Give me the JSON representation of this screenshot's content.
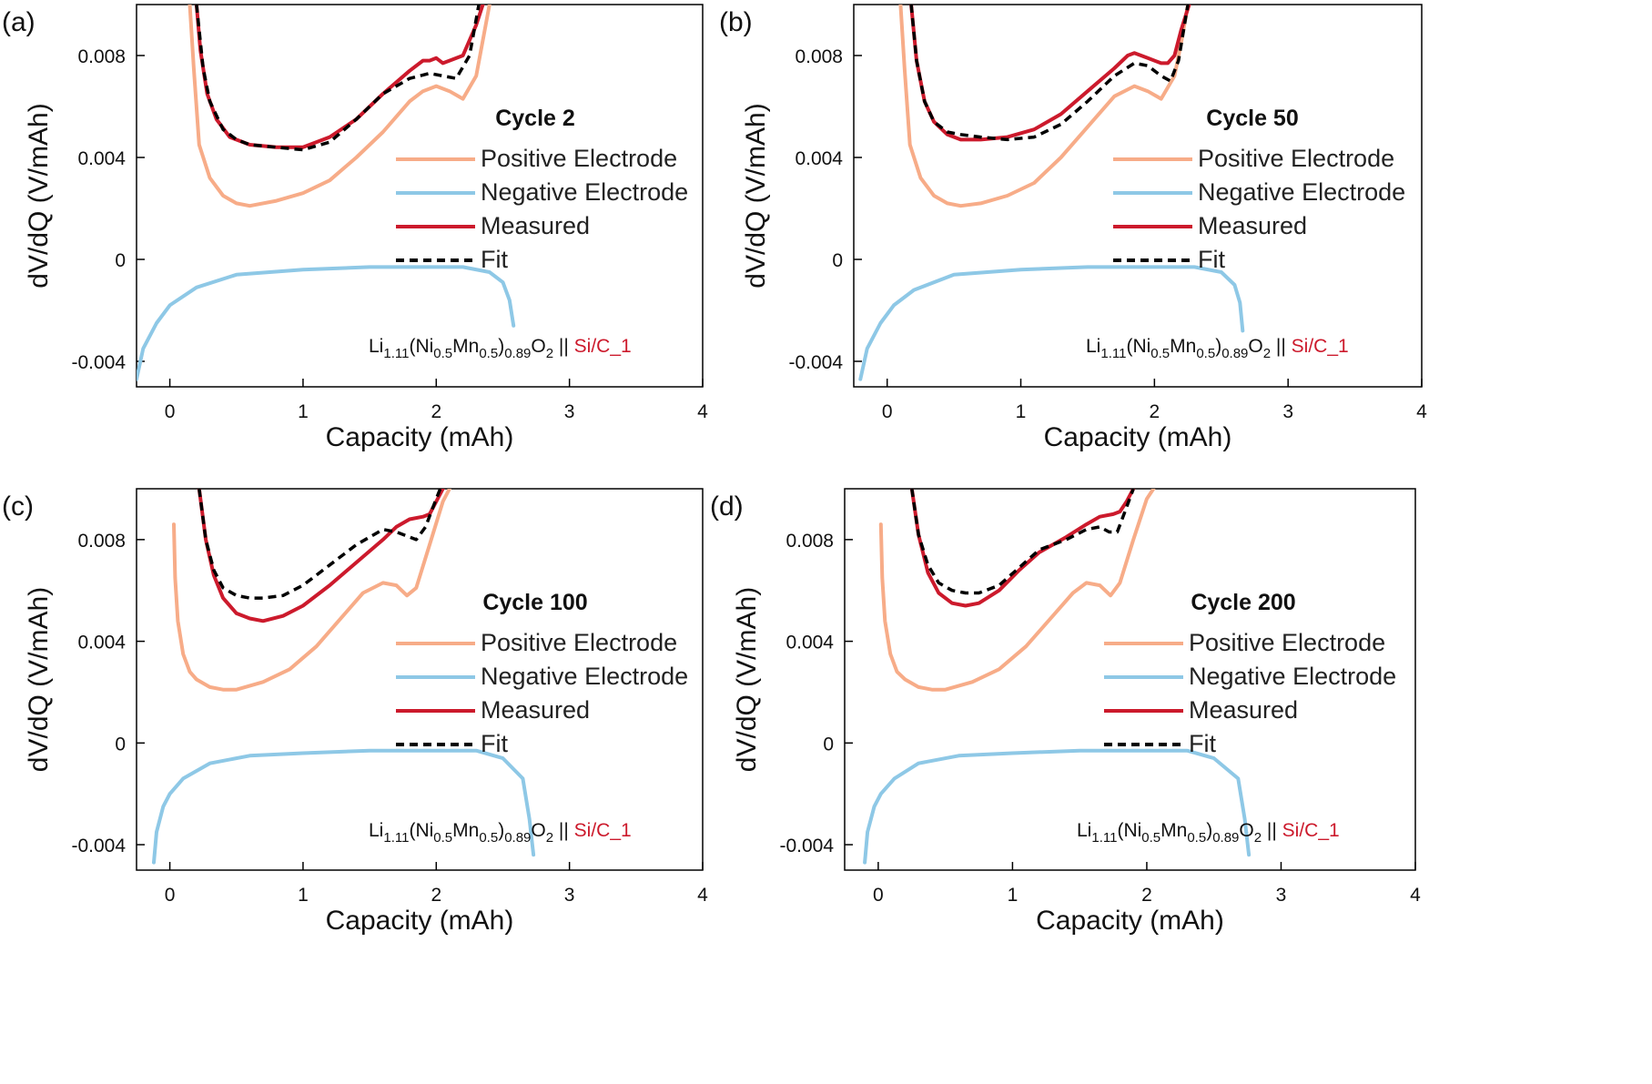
{
  "figure": {
    "panels": [
      {
        "letter": "(a)",
        "cycle_title": "Cycle 2"
      },
      {
        "letter": "(b)",
        "cycle_title": "Cycle 50"
      },
      {
        "letter": "(c)",
        "cycle_title": "Cycle 100"
      },
      {
        "letter": "(d)",
        "cycle_title": "Cycle 200"
      }
    ],
    "colors": {
      "positive": "#f7ac88",
      "negative": "#8ec8e6",
      "measured": "#cc1a2c",
      "fit": "#000000",
      "axis": "#000000",
      "annotation_red": "#cc1a2c"
    },
    "xlabel": "Capacity (mAh)",
    "ylabel": "dV/dQ (V/mAh)",
    "xticks": [
      "0",
      "1",
      "2",
      "3",
      "4"
    ],
    "yticks": [
      "-0.004",
      "0",
      "0.004",
      "0.008"
    ],
    "legend": [
      "Positive Electrode",
      "Negative Electrode",
      "Measured",
      "Fit"
    ],
    "annotation": {
      "li": "Li",
      "li_sub": "1.11",
      "open": "(Ni",
      "ni_sub": "0.5",
      "mn": "Mn",
      "mn_sub": "0.5",
      "close": ")",
      "close_sub": "0.89",
      "oxy": "O",
      "oxy_sub": "2",
      "sep": " || ",
      "anode": "Si/C_1"
    }
  },
  "chart_data": [
    {
      "type": "line",
      "title": "Cycle 2",
      "xlabel": "Capacity (mAh)",
      "ylabel": "dV/dQ (V/mAh)",
      "xlim": [
        -0.25,
        4
      ],
      "ylim": [
        -0.005,
        0.01
      ],
      "legend_position": "right",
      "series": [
        {
          "name": "Positive Electrode",
          "x": [
            0.15,
            0.18,
            0.22,
            0.3,
            0.4,
            0.5,
            0.6,
            0.8,
            1.0,
            1.2,
            1.4,
            1.6,
            1.8,
            1.9,
            2.0,
            2.1,
            2.2,
            2.3,
            2.4
          ],
          "y": [
            0.01,
            0.0075,
            0.0045,
            0.0032,
            0.0025,
            0.0022,
            0.0021,
            0.0023,
            0.0026,
            0.0031,
            0.004,
            0.005,
            0.0062,
            0.0066,
            0.0068,
            0.0066,
            0.0063,
            0.0072,
            0.01
          ]
        },
        {
          "name": "Negative Electrode",
          "x": [
            -0.25,
            -0.2,
            -0.1,
            0.0,
            0.2,
            0.5,
            1.0,
            1.5,
            2.0,
            2.2,
            2.4,
            2.5,
            2.55,
            2.58
          ],
          "y": [
            -0.0047,
            -0.0035,
            -0.0025,
            -0.0018,
            -0.0011,
            -0.0006,
            -0.0004,
            -0.0003,
            -0.0003,
            -0.0003,
            -0.0005,
            -0.0009,
            -0.0016,
            -0.0026
          ]
        },
        {
          "name": "Measured",
          "x": [
            0.2,
            0.23,
            0.28,
            0.35,
            0.45,
            0.6,
            0.8,
            1.0,
            1.2,
            1.4,
            1.6,
            1.8,
            1.9,
            1.95,
            2.0,
            2.05,
            2.1,
            2.2,
            2.3,
            2.35
          ],
          "y": [
            0.01,
            0.0082,
            0.0065,
            0.0055,
            0.0048,
            0.0045,
            0.0044,
            0.0044,
            0.0048,
            0.0055,
            0.0065,
            0.0074,
            0.0078,
            0.0078,
            0.0079,
            0.0077,
            0.0078,
            0.008,
            0.0092,
            0.01
          ]
        },
        {
          "name": "Fit",
          "x": [
            0.2,
            0.25,
            0.3,
            0.4,
            0.5,
            0.6,
            0.8,
            1.0,
            1.2,
            1.4,
            1.6,
            1.8,
            1.95,
            2.05,
            2.15,
            2.25,
            2.32
          ],
          "y": [
            0.01,
            0.0075,
            0.0062,
            0.0051,
            0.0047,
            0.0045,
            0.0044,
            0.0043,
            0.0046,
            0.0055,
            0.0065,
            0.0071,
            0.0073,
            0.0072,
            0.0071,
            0.008,
            0.01
          ]
        }
      ]
    },
    {
      "type": "line",
      "title": "Cycle 50",
      "xlabel": "Capacity (mAh)",
      "ylabel": "dV/dQ (V/mAh)",
      "xlim": [
        -0.25,
        4
      ],
      "ylim": [
        -0.005,
        0.01
      ],
      "legend_position": "right",
      "series": [
        {
          "name": "Positive Electrode",
          "x": [
            0.1,
            0.13,
            0.17,
            0.25,
            0.35,
            0.45,
            0.55,
            0.7,
            0.9,
            1.1,
            1.3,
            1.5,
            1.7,
            1.85,
            1.95,
            2.05,
            2.15,
            2.2,
            2.25
          ],
          "y": [
            0.01,
            0.0075,
            0.0045,
            0.0032,
            0.0025,
            0.0022,
            0.0021,
            0.0022,
            0.0025,
            0.003,
            0.004,
            0.0052,
            0.0064,
            0.0068,
            0.0066,
            0.0063,
            0.0072,
            0.0085,
            0.01
          ]
        },
        {
          "name": "Negative Electrode",
          "x": [
            -0.2,
            -0.15,
            -0.05,
            0.05,
            0.2,
            0.5,
            1.0,
            1.5,
            2.0,
            2.3,
            2.5,
            2.6,
            2.64,
            2.66
          ],
          "y": [
            -0.0047,
            -0.0035,
            -0.0025,
            -0.0018,
            -0.0012,
            -0.0006,
            -0.0004,
            -0.0003,
            -0.0003,
            -0.0003,
            -0.0005,
            -0.001,
            -0.0017,
            -0.0028
          ]
        },
        {
          "name": "Measured",
          "x": [
            0.18,
            0.22,
            0.28,
            0.35,
            0.45,
            0.55,
            0.7,
            0.9,
            1.1,
            1.3,
            1.5,
            1.7,
            1.8,
            1.85,
            1.95,
            2.05,
            2.1,
            2.15,
            2.2,
            2.26
          ],
          "y": [
            0.01,
            0.0078,
            0.0062,
            0.0054,
            0.0049,
            0.0047,
            0.0047,
            0.0048,
            0.0051,
            0.0057,
            0.0066,
            0.0075,
            0.008,
            0.0081,
            0.0079,
            0.0077,
            0.0077,
            0.008,
            0.009,
            0.01
          ]
        },
        {
          "name": "Fit",
          "x": [
            0.18,
            0.22,
            0.28,
            0.35,
            0.45,
            0.55,
            0.7,
            0.9,
            1.1,
            1.3,
            1.5,
            1.7,
            1.85,
            1.95,
            2.05,
            2.12,
            2.18,
            2.25
          ],
          "y": [
            0.01,
            0.0078,
            0.0062,
            0.0054,
            0.005,
            0.0049,
            0.0048,
            0.0047,
            0.0048,
            0.0053,
            0.0062,
            0.0072,
            0.0077,
            0.0076,
            0.0072,
            0.007,
            0.0078,
            0.01
          ]
        }
      ]
    },
    {
      "type": "line",
      "title": "Cycle 100",
      "xlabel": "Capacity (mAh)",
      "ylabel": "dV/dQ (V/mAh)",
      "xlim": [
        -0.25,
        4
      ],
      "ylim": [
        -0.005,
        0.01
      ],
      "legend_position": "right",
      "series": [
        {
          "name": "Positive Electrode",
          "x": [
            0.03,
            0.04,
            0.06,
            0.1,
            0.15,
            0.2,
            0.3,
            0.4,
            0.5,
            0.7,
            0.9,
            1.1,
            1.3,
            1.45,
            1.6,
            1.7,
            1.78,
            1.85,
            1.95,
            2.05,
            2.1
          ],
          "y": [
            0.0086,
            0.0065,
            0.0048,
            0.0035,
            0.0028,
            0.0025,
            0.0022,
            0.0021,
            0.0021,
            0.0024,
            0.0029,
            0.0038,
            0.005,
            0.0059,
            0.0063,
            0.0062,
            0.0058,
            0.0061,
            0.0078,
            0.0095,
            0.01
          ]
        },
        {
          "name": "Negative Electrode",
          "x": [
            -0.12,
            -0.1,
            -0.05,
            0.0,
            0.1,
            0.3,
            0.6,
            1.0,
            1.5,
            2.0,
            2.3,
            2.5,
            2.65,
            2.7,
            2.73
          ],
          "y": [
            -0.0047,
            -0.0035,
            -0.0025,
            -0.002,
            -0.0014,
            -0.0008,
            -0.0005,
            -0.0004,
            -0.0003,
            -0.0003,
            -0.0003,
            -0.0006,
            -0.0014,
            -0.003,
            -0.0044
          ]
        },
        {
          "name": "Measured",
          "x": [
            0.22,
            0.27,
            0.33,
            0.4,
            0.5,
            0.6,
            0.7,
            0.85,
            1.0,
            1.2,
            1.4,
            1.6,
            1.7,
            1.8,
            1.9,
            1.95,
            2.0,
            2.05
          ],
          "y": [
            0.01,
            0.008,
            0.0066,
            0.0057,
            0.0051,
            0.0049,
            0.0048,
            0.005,
            0.0054,
            0.0062,
            0.0071,
            0.008,
            0.0085,
            0.0088,
            0.0089,
            0.009,
            0.0095,
            0.01
          ]
        },
        {
          "name": "Fit",
          "x": [
            0.22,
            0.27,
            0.33,
            0.4,
            0.5,
            0.6,
            0.7,
            0.85,
            1.0,
            1.2,
            1.4,
            1.6,
            1.7,
            1.8,
            1.85,
            1.92,
            1.97,
            2.03
          ],
          "y": [
            0.01,
            0.008,
            0.0068,
            0.0061,
            0.0058,
            0.0057,
            0.0057,
            0.0058,
            0.0062,
            0.007,
            0.0078,
            0.0084,
            0.0083,
            0.0081,
            0.008,
            0.0085,
            0.0092,
            0.01
          ]
        }
      ]
    },
    {
      "type": "line",
      "title": "Cycle 200",
      "xlabel": "Capacity (mAh)",
      "ylabel": "dV/dQ (V/mAh)",
      "xlim": [
        -0.25,
        4
      ],
      "ylim": [
        -0.005,
        0.01
      ],
      "legend_position": "right",
      "series": [
        {
          "name": "Positive Electrode",
          "x": [
            0.02,
            0.03,
            0.05,
            0.09,
            0.14,
            0.2,
            0.3,
            0.4,
            0.5,
            0.7,
            0.9,
            1.1,
            1.3,
            1.45,
            1.55,
            1.65,
            1.73,
            1.8,
            1.9,
            2.0,
            2.05
          ],
          "y": [
            0.0086,
            0.0065,
            0.0048,
            0.0035,
            0.0028,
            0.0025,
            0.0022,
            0.0021,
            0.0021,
            0.0024,
            0.0029,
            0.0038,
            0.005,
            0.0059,
            0.0063,
            0.0062,
            0.0058,
            0.0063,
            0.008,
            0.0096,
            0.01
          ]
        },
        {
          "name": "Negative Electrode",
          "x": [
            -0.1,
            -0.08,
            -0.03,
            0.02,
            0.12,
            0.3,
            0.6,
            1.0,
            1.5,
            2.0,
            2.3,
            2.5,
            2.68,
            2.73,
            2.76
          ],
          "y": [
            -0.0047,
            -0.0035,
            -0.0025,
            -0.002,
            -0.0014,
            -0.0008,
            -0.0005,
            -0.0004,
            -0.0003,
            -0.0003,
            -0.0003,
            -0.0006,
            -0.0014,
            -0.003,
            -0.0044
          ]
        },
        {
          "name": "Measured",
          "x": [
            0.25,
            0.3,
            0.37,
            0.45,
            0.55,
            0.65,
            0.75,
            0.9,
            1.05,
            1.2,
            1.4,
            1.55,
            1.65,
            1.75,
            1.8,
            1.85,
            1.9
          ],
          "y": [
            0.01,
            0.0082,
            0.0067,
            0.0059,
            0.0055,
            0.0054,
            0.0055,
            0.006,
            0.0068,
            0.0075,
            0.0081,
            0.0086,
            0.0089,
            0.009,
            0.0091,
            0.0095,
            0.01
          ]
        },
        {
          "name": "Fit",
          "x": [
            0.25,
            0.3,
            0.37,
            0.45,
            0.55,
            0.65,
            0.75,
            0.9,
            1.05,
            1.2,
            1.4,
            1.55,
            1.65,
            1.72,
            1.78,
            1.83,
            1.9
          ],
          "y": [
            0.01,
            0.0082,
            0.007,
            0.0063,
            0.006,
            0.0059,
            0.0059,
            0.0062,
            0.0069,
            0.0076,
            0.008,
            0.0084,
            0.0085,
            0.0083,
            0.0083,
            0.009,
            0.01
          ]
        }
      ]
    }
  ]
}
